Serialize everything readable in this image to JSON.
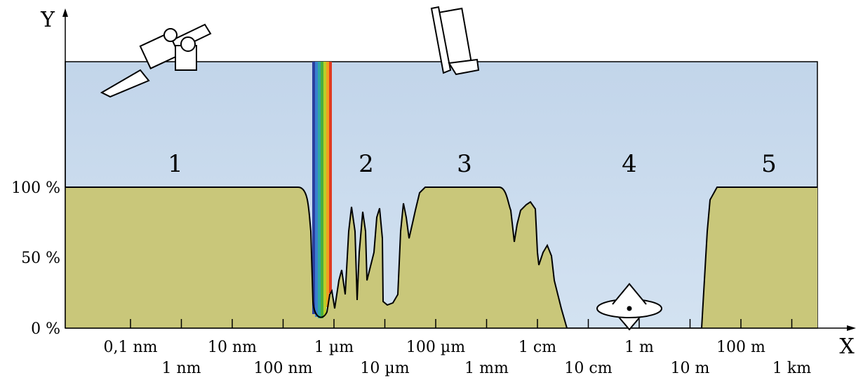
{
  "axes": {
    "y_label": "Y",
    "x_label": "X"
  },
  "y_ticks": [
    "0 %",
    "50 %",
    "100 %"
  ],
  "x_ticks": [
    "0,1 nm",
    "1 nm",
    "10 nm",
    "100 nm",
    "1 µm",
    "10 µm",
    "100 µm",
    "1 mm",
    "1 cm",
    "10 cm",
    "1 m",
    "10 m",
    "100 m",
    "1 km"
  ],
  "regions": [
    "1",
    "2",
    "3",
    "4",
    "5"
  ]
}
